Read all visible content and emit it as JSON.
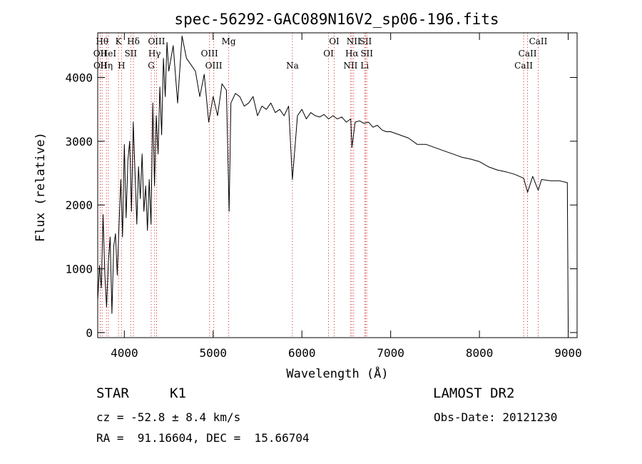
{
  "chart_data": {
    "type": "line",
    "title": "spec-56292-GAC089N16V2_sp06-196.fits",
    "xlabel": "Wavelength (Å)",
    "ylabel": "Flux (relative)",
    "xlim": [
      3700,
      9100
    ],
    "ylim": [
      -80,
      4700
    ],
    "x_ticks": [
      4000,
      5000,
      6000,
      7000,
      8000,
      9000
    ],
    "y_ticks": [
      0,
      1000,
      2000,
      3000,
      4000
    ],
    "grid": false,
    "series": [
      {
        "x": [
          3700,
          3720,
          3740,
          3760,
          3780,
          3800,
          3820,
          3840,
          3860,
          3880,
          3900,
          3920,
          3940,
          3960,
          3980,
          4000,
          4020,
          4040,
          4060,
          4080,
          4100,
          4120,
          4140,
          4160,
          4180,
          4200,
          4220,
          4240,
          4260,
          4280,
          4300,
          4320,
          4340,
          4360,
          4380,
          4400,
          4420,
          4440,
          4460,
          4480,
          4500,
          4550,
          4600,
          4650,
          4700,
          4750,
          4800,
          4850,
          4900,
          4950,
          5000,
          5050,
          5100,
          5150,
          5180,
          5200,
          5250,
          5300,
          5350,
          5400,
          5450,
          5500,
          5550,
          5600,
          5650,
          5700,
          5750,
          5800,
          5850,
          5893,
          5950,
          6000,
          6050,
          6100,
          6150,
          6200,
          6250,
          6300,
          6350,
          6400,
          6450,
          6500,
          6550,
          6563,
          6600,
          6650,
          6700,
          6750,
          6800,
          6850,
          6900,
          6950,
          7000,
          7100,
          7200,
          7300,
          7400,
          7500,
          7600,
          7700,
          7800,
          7900,
          8000,
          8100,
          8200,
          8300,
          8400,
          8498,
          8542,
          8600,
          8662,
          8700,
          8800,
          8900,
          8990,
          9000
        ],
        "y": [
          500,
          1050,
          700,
          1850,
          900,
          400,
          1100,
          1500,
          300,
          1350,
          1550,
          900,
          1700,
          2400,
          1500,
          2950,
          1800,
          2700,
          3000,
          1900,
          3300,
          2500,
          1700,
          2600,
          2100,
          2800,
          1900,
          2300,
          1600,
          2400,
          1700,
          3600,
          2300,
          3400,
          2800,
          3850,
          3100,
          4300,
          3700,
          4550,
          4100,
          4500,
          3600,
          4650,
          4300,
          4200,
          4100,
          3700,
          4050,
          3300,
          3700,
          3400,
          3900,
          3800,
          1900,
          3600,
          3750,
          3700,
          3550,
          3600,
          3700,
          3400,
          3550,
          3500,
          3600,
          3450,
          3500,
          3400,
          3550,
          2400,
          3400,
          3500,
          3350,
          3450,
          3400,
          3380,
          3420,
          3350,
          3400,
          3350,
          3380,
          3300,
          3350,
          2900,
          3300,
          3320,
          3280,
          3300,
          3220,
          3250,
          3180,
          3150,
          3150,
          3100,
          3050,
          2950,
          2950,
          2900,
          2850,
          2800,
          2750,
          2720,
          2680,
          2600,
          2550,
          2520,
          2480,
          2420,
          2200,
          2450,
          2230,
          2400,
          2380,
          2380,
          2350,
          0
        ]
      }
    ],
    "line_markers": [
      {
        "x": 3727,
        "label": "OII",
        "row": 1
      },
      {
        "x": 3729,
        "label": "OII",
        "row": 2
      },
      {
        "x": 3750,
        "label": "Hθ",
        "row": 0
      },
      {
        "x": 3798,
        "label": "Hη",
        "row": 2
      },
      {
        "x": 3820,
        "label": "HeI",
        "row": 1
      },
      {
        "x": 3934,
        "label": "K",
        "row": 0
      },
      {
        "x": 3968,
        "label": "H",
        "row": 2
      },
      {
        "x": 4072,
        "label": "SII",
        "row": 1
      },
      {
        "x": 4102,
        "label": "Hδ",
        "row": 0
      },
      {
        "x": 4340,
        "label": "Hγ",
        "row": 1
      },
      {
        "x": 4303,
        "label": "G",
        "row": 2
      },
      {
        "x": 4363,
        "label": "OIII",
        "row": 0
      },
      {
        "x": 4959,
        "label": "OIII",
        "row": 1
      },
      {
        "x": 5007,
        "label": "OIII",
        "row": 2
      },
      {
        "x": 5175,
        "label": "Mg",
        "row": 0
      },
      {
        "x": 5893,
        "label": "Na",
        "row": 2
      },
      {
        "x": 6300,
        "label": "OI",
        "row": 1
      },
      {
        "x": 6364,
        "label": "OI",
        "row": 0
      },
      {
        "x": 6548,
        "label": "NII",
        "row": 2
      },
      {
        "x": 6563,
        "label": "Hα",
        "row": 1
      },
      {
        "x": 6583,
        "label": "NII",
        "row": 0
      },
      {
        "x": 6707,
        "label": "Li",
        "row": 2
      },
      {
        "x": 6717,
        "label": "SII",
        "row": 0
      },
      {
        "x": 6731,
        "label": "SII",
        "row": 1
      },
      {
        "x": 8498,
        "label": "CaII",
        "row": 2
      },
      {
        "x": 8542,
        "label": "CaII",
        "row": 1
      },
      {
        "x": 8662,
        "label": "CaII",
        "row": 0
      }
    ]
  },
  "info": {
    "object_class": "STAR",
    "subclass": "K1",
    "survey": "LAMOST DR2",
    "cz": "cz = -52.8 ± 8.4 km/s",
    "obs_date": "Obs-Date: 20121230",
    "coords": "RA =  91.16604, DEC =  15.66704"
  }
}
